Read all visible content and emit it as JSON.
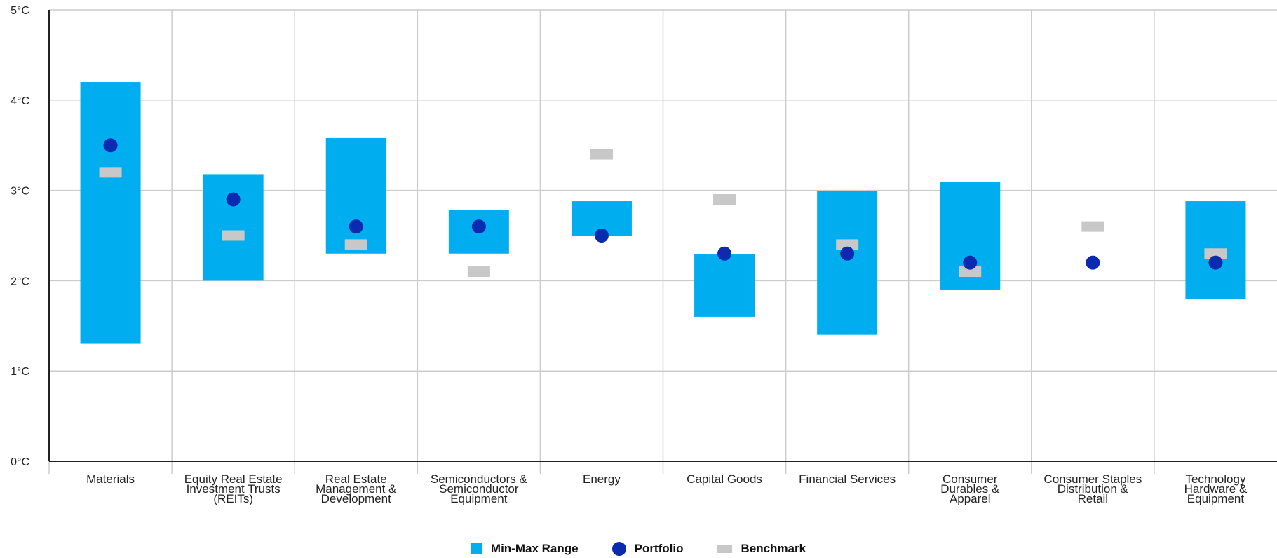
{
  "colors": {
    "range": "#00aeef",
    "portfolio": "#0a2bb0",
    "benchmark": "#c8c8c8",
    "grid": "#cccccc",
    "axis": "#222222"
  },
  "legend": [
    {
      "key": "range",
      "label": "Min-Max Range"
    },
    {
      "key": "portfolio",
      "label": "Portfolio"
    },
    {
      "key": "benchmark",
      "label": "Benchmark"
    }
  ],
  "chart_data": {
    "type": "range-dot",
    "ylim": [
      0,
      5
    ],
    "yticks": [
      "0°C",
      "1°C",
      "2°C",
      "3°C",
      "4°C",
      "5°C"
    ],
    "grid": true,
    "legend_position": "bottom",
    "categories": [
      {
        "label": [
          "Materials"
        ],
        "min": 1.3,
        "max": 4.2,
        "portfolio": 3.5,
        "benchmark": 3.2
      },
      {
        "label": [
          "Equity Real Estate",
          "Investment Trusts",
          "(REITs)"
        ],
        "min": 2.0,
        "max": 3.18,
        "portfolio": 2.9,
        "benchmark": 2.5
      },
      {
        "label": [
          "Real Estate",
          "Management &",
          "Development"
        ],
        "min": 2.3,
        "max": 3.58,
        "portfolio": 2.6,
        "benchmark": 2.4
      },
      {
        "label": [
          "Semiconductors &",
          "Semiconductor",
          "Equipment"
        ],
        "min": 2.3,
        "max": 2.78,
        "portfolio": 2.6,
        "benchmark": 2.1
      },
      {
        "label": [
          "Energy"
        ],
        "min": 2.5,
        "max": 2.88,
        "portfolio": 2.5,
        "benchmark": 3.4
      },
      {
        "label": [
          "Capital Goods"
        ],
        "min": 1.6,
        "max": 2.29,
        "portfolio": 2.3,
        "benchmark": 2.9
      },
      {
        "label": [
          "Financial Services"
        ],
        "min": 1.4,
        "max": 2.99,
        "portfolio": 2.3,
        "benchmark": 2.4
      },
      {
        "label": [
          "Consumer",
          "Durables &",
          "Apparel"
        ],
        "min": 1.9,
        "max": 3.09,
        "portfolio": 2.2,
        "benchmark": 2.1
      },
      {
        "label": [
          "Consumer Staples",
          "Distribution &",
          "Retail"
        ],
        "min": null,
        "max": null,
        "portfolio": 2.2,
        "benchmark": 2.6
      },
      {
        "label": [
          "Technology",
          "Hardware &",
          "Equipment"
        ],
        "min": 1.8,
        "max": 2.88,
        "portfolio": 2.2,
        "benchmark": 2.3
      }
    ]
  }
}
